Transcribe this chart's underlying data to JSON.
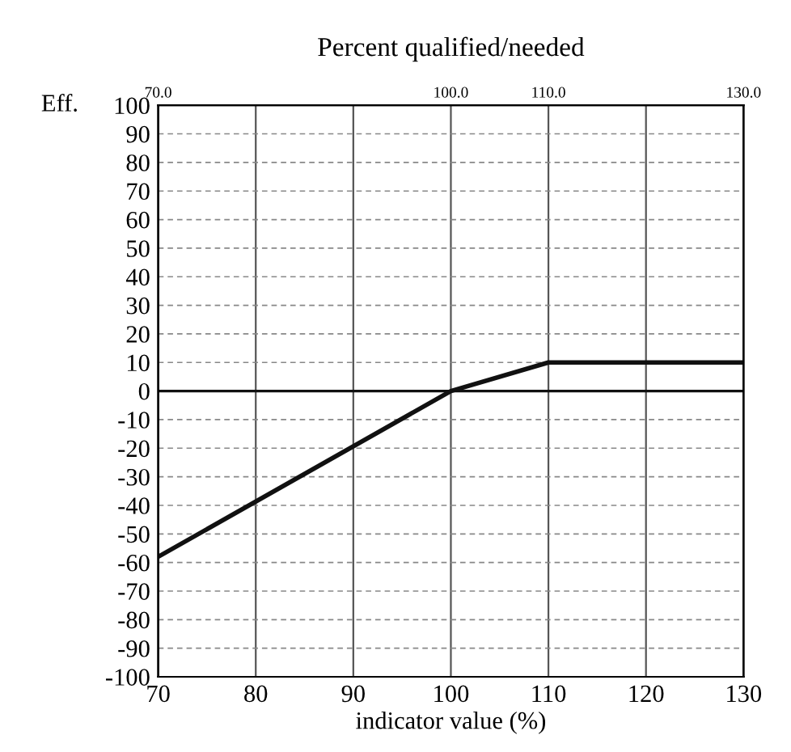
{
  "chart_data": {
    "type": "line",
    "title": "Percent qualified/needed",
    "xlabel": "indicator value (%)",
    "ylabel": "Eff.",
    "x": [
      70,
      100,
      110,
      130
    ],
    "series": [
      {
        "color": "#111111",
        "values": [
          -58,
          0,
          10,
          10
        ]
      }
    ],
    "xlim": [
      70,
      130
    ],
    "xticks": [
      70,
      80,
      90,
      100,
      110,
      120,
      130
    ],
    "x2lim": [
      70,
      130
    ],
    "x2ticks": [
      {
        "value": 70,
        "label": "70.0"
      },
      {
        "value": 100,
        "label": "100.0"
      },
      {
        "value": 110,
        "label": "110.0"
      },
      {
        "value": 130,
        "label": "130.0"
      }
    ],
    "ylim": [
      -100,
      100
    ],
    "yticks": [
      -100,
      -90,
      -80,
      -70,
      -60,
      -50,
      -40,
      -30,
      -20,
      -10,
      0,
      10,
      20,
      30,
      40,
      50,
      60,
      70,
      80,
      90,
      100
    ],
    "ref_lines": [
      {
        "axis": "y",
        "value": 0,
        "color": "#111111",
        "line_style": "solid"
      }
    ],
    "grid": true,
    "legend": false,
    "marker": "none",
    "line_style": "solid"
  }
}
